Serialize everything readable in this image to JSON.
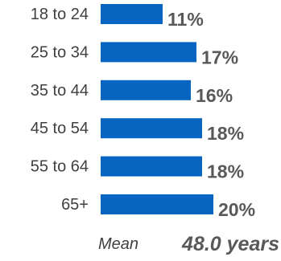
{
  "chart_data": {
    "type": "bar",
    "orientation": "horizontal",
    "categories": [
      "18 to 24",
      "25 to 34",
      "35 to 44",
      "45 to 54",
      "55 to 64",
      "65+"
    ],
    "values": [
      11,
      17,
      16,
      18,
      18,
      20
    ],
    "value_labels": [
      "11%",
      "17%",
      "16%",
      "18%",
      "18%",
      "20%"
    ],
    "unit": "%",
    "bar_color": "#0565C0",
    "title": "",
    "xlabel": "",
    "ylabel": "",
    "grid": false,
    "legend": "none"
  },
  "summary": {
    "mean_label": "Mean",
    "mean_value": "48.0 years"
  }
}
